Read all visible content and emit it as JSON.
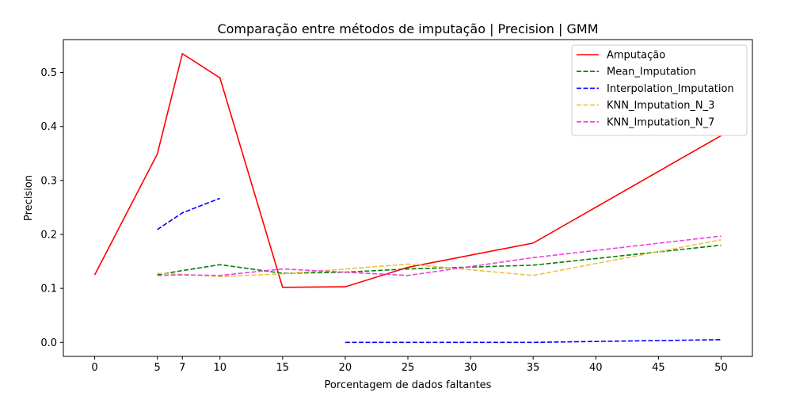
{
  "chart_data": {
    "type": "line",
    "title": "Comparação entre métodos de imputação | Precision | GMM",
    "xlabel": "Porcentagem de dados faltantes",
    "ylabel": "Precision",
    "xlim": [
      -2.5,
      52.5
    ],
    "ylim": [
      -0.026,
      0.561
    ],
    "xticks": [
      0,
      5,
      7,
      10,
      15,
      20,
      25,
      30,
      35,
      40,
      45,
      50
    ],
    "yticks": [
      0.0,
      0.1,
      0.2,
      0.3,
      0.4,
      0.5
    ],
    "ytick_labels": [
      "0.0",
      "0.1",
      "0.2",
      "0.3",
      "0.4",
      "0.5"
    ],
    "grid": false,
    "legend_position": "top-right",
    "series": [
      {
        "name": "Amputação",
        "color": "#ff0000",
        "dash": "solid",
        "points": [
          [
            0,
            0.125
          ],
          [
            5,
            0.349
          ],
          [
            7,
            0.535
          ],
          [
            10,
            0.49
          ],
          [
            15,
            0.102
          ],
          [
            20,
            0.103
          ],
          [
            25,
            0.139
          ],
          [
            35,
            0.184
          ],
          [
            50,
            0.383
          ]
        ]
      },
      {
        "name": "Mean_Imputation",
        "color": "#008000",
        "dash": "dashed",
        "points": [
          [
            5,
            0.125
          ],
          [
            7,
            0.133
          ],
          [
            10,
            0.144
          ],
          [
            15,
            0.128
          ],
          [
            20,
            0.13
          ],
          [
            25,
            0.136
          ],
          [
            35,
            0.143
          ],
          [
            50,
            0.18
          ]
        ]
      },
      {
        "name": "Interpolation_Imputation",
        "color": "#0000ff",
        "dash": "dashed",
        "points": [
          [
            5,
            0.209
          ],
          [
            7,
            0.24
          ],
          [
            10,
            0.267
          ],
          [
            15,
            null
          ],
          [
            20,
            0.0
          ],
          [
            25,
            0.0
          ],
          [
            35,
            0.0
          ],
          [
            50,
            0.005
          ]
        ]
      },
      {
        "name": "KNN_Imputation_N_3",
        "color": "#f0c040",
        "dash": "dashed",
        "points": [
          [
            5,
            0.128
          ],
          [
            7,
            0.126
          ],
          [
            10,
            0.122
          ],
          [
            15,
            0.127
          ],
          [
            20,
            0.136
          ],
          [
            25,
            0.145
          ],
          [
            35,
            0.124
          ],
          [
            50,
            0.19
          ]
        ]
      },
      {
        "name": "KNN_Imputation_N_7",
        "color": "#f040e0",
        "dash": "dashed",
        "points": [
          [
            5,
            0.124
          ],
          [
            7,
            0.125
          ],
          [
            10,
            0.124
          ],
          [
            15,
            0.136
          ],
          [
            20,
            0.13
          ],
          [
            25,
            0.124
          ],
          [
            35,
            0.157
          ],
          [
            50,
            0.197
          ]
        ]
      }
    ]
  }
}
